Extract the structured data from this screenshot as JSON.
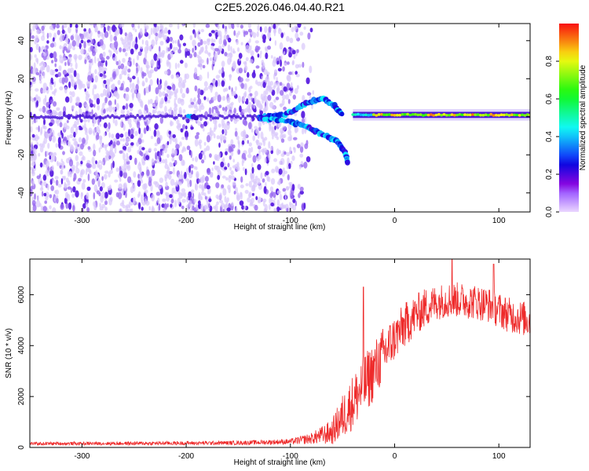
{
  "title": "C2E5.2026.046.04.40.R21",
  "colors": {
    "snr_line": "#ee2a2a",
    "axis": "#000000",
    "background": "#ffffff"
  },
  "chart_data": [
    {
      "type": "heatmap",
      "name": "spectrogram",
      "xlabel": "Height of straight line (km)",
      "ylabel": "Frequency (Hz)",
      "xlim": [
        -350,
        130
      ],
      "ylim": [
        -50,
        49
      ],
      "xticks": [
        -300,
        -200,
        -100,
        0,
        100
      ],
      "yticks": [
        -40,
        -20,
        0,
        20,
        40
      ],
      "colorbar": {
        "label": "Normalized spectral amplitude",
        "range": [
          0,
          1
        ],
        "ticks": [
          0.0,
          0.2,
          0.4,
          0.6,
          0.8
        ],
        "tick_labels": [
          "0.0",
          "0.2",
          "0.4",
          "0.6",
          "0.8"
        ]
      },
      "features": [
        {
          "name": "noise-field",
          "x_range": [
            -350,
            -90
          ],
          "freq_range": [
            -50,
            49
          ],
          "amplitude": 0.1
        },
        {
          "name": "upper-branch",
          "points": [
            [
              -130,
              0
            ],
            [
              -105,
              1
            ],
            [
              -85,
              7
            ],
            [
              -70,
              10
            ],
            [
              -58,
              6
            ],
            [
              -50,
              1
            ]
          ],
          "amplitude": 0.4
        },
        {
          "name": "lower-branch",
          "points": [
            [
              -130,
              -1
            ],
            [
              -105,
              -2
            ],
            [
              -85,
              -5
            ],
            [
              -70,
              -9
            ],
            [
              -55,
              -13
            ],
            [
              -48,
              -18
            ],
            [
              -45,
              -24
            ]
          ],
          "amplitude": 0.4
        },
        {
          "name": "carrier",
          "x_range": [
            -40,
            130
          ],
          "freq": 1,
          "amplitude": 0.85
        }
      ]
    },
    {
      "type": "line",
      "name": "snr",
      "xlabel": "Height of straight line (km)",
      "ylabel": "SNR (10 * v/v)",
      "xlim": [
        -350,
        130
      ],
      "ylim": [
        0,
        7400
      ],
      "xticks": [
        -300,
        -200,
        -100,
        0,
        100
      ],
      "yticks": [
        0,
        2000,
        4000,
        6000
      ],
      "envelope": {
        "x": [
          -350,
          -250,
          -150,
          -100,
          -80,
          -60,
          -50,
          -40,
          -30,
          -20,
          -10,
          0,
          10,
          20,
          30,
          40,
          50,
          60,
          70,
          80,
          90,
          100,
          110,
          120,
          130
        ],
        "mean": [
          150,
          160,
          180,
          230,
          350,
          600,
          1200,
          1800,
          2400,
          3000,
          3700,
          4300,
          4800,
          5200,
          5500,
          5700,
          5800,
          5800,
          5750,
          5700,
          5600,
          5400,
          5200,
          5100,
          5000
        ],
        "spread": [
          60,
          70,
          80,
          110,
          220,
          500,
          900,
          1100,
          1200,
          1200,
          1100,
          900,
          900,
          800,
          800,
          700,
          700,
          700,
          700,
          700,
          700,
          700,
          700,
          700,
          700
        ]
      },
      "peak_near": [
        [
          -30,
          6300
        ],
        [
          55,
          7400
        ],
        [
          95,
          7200
        ]
      ]
    }
  ]
}
